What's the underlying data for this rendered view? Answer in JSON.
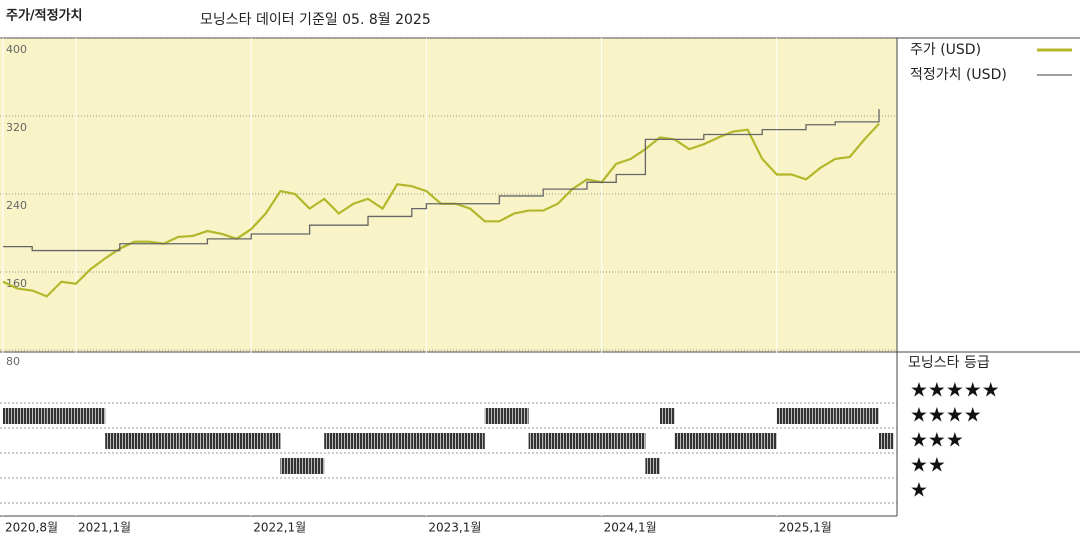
{
  "chart_data": {
    "type": "line",
    "title": "주가/적정가치",
    "subtitle": "모닝스타 데이터 기준일 05. 8월 2025",
    "x": [
      "2020-08",
      "2020-09",
      "2020-10",
      "2020-11",
      "2020-12",
      "2021-01",
      "2021-02",
      "2021-03",
      "2021-04",
      "2021-05",
      "2021-06",
      "2021-07",
      "2021-08",
      "2021-09",
      "2021-10",
      "2021-11",
      "2021-12",
      "2022-01",
      "2022-02",
      "2022-03",
      "2022-04",
      "2022-05",
      "2022-06",
      "2022-07",
      "2022-08",
      "2022-09",
      "2022-10",
      "2022-11",
      "2022-12",
      "2023-01",
      "2023-02",
      "2023-03",
      "2023-04",
      "2023-05",
      "2023-06",
      "2023-07",
      "2023-08",
      "2023-09",
      "2023-10",
      "2023-11",
      "2023-12",
      "2024-01",
      "2024-02",
      "2024-03",
      "2024-04",
      "2024-05",
      "2024-06",
      "2024-07",
      "2024-08",
      "2024-09",
      "2024-10",
      "2024-11",
      "2024-12",
      "2025-01",
      "2025-02",
      "2025-03",
      "2025-04",
      "2025-05",
      "2025-06",
      "2025-07",
      "2025-08"
    ],
    "series": [
      {
        "name": "주가 (USD)",
        "color": "#b3b72a",
        "step": false,
        "values": [
          150,
          143,
          141,
          135,
          150,
          148,
          163,
          174,
          184,
          191,
          191,
          189,
          196,
          197,
          202,
          199,
          194,
          204,
          220,
          243,
          240,
          225,
          235,
          220,
          230,
          235,
          225,
          250,
          248,
          243,
          230,
          230,
          225,
          212,
          212,
          220,
          223,
          223,
          230,
          245,
          255,
          252,
          271,
          276,
          286,
          298,
          296,
          286,
          291,
          298,
          304,
          306,
          276,
          260,
          260,
          255,
          267,
          276,
          278,
          296,
          312
        ]
      },
      {
        "name": "적정가치 (USD)",
        "color": "#666666",
        "step": true,
        "values": [
          186,
          186,
          182,
          182,
          182,
          182,
          182,
          182,
          189,
          189,
          189,
          189,
          189,
          189,
          194,
          194,
          194,
          199,
          199,
          199,
          199,
          208,
          208,
          208,
          208,
          217,
          217,
          217,
          225,
          230,
          230,
          230,
          230,
          230,
          238,
          238,
          238,
          245,
          245,
          245,
          252,
          252,
          260,
          260,
          296,
          296,
          296,
          296,
          301,
          301,
          301,
          301,
          306,
          306,
          306,
          311,
          311,
          314,
          314,
          314,
          327
        ]
      }
    ],
    "ratings": {
      "name": "모닝스타 등급",
      "values": [
        4,
        4,
        4,
        4,
        4,
        4,
        4,
        3,
        3,
        3,
        3,
        3,
        3,
        3,
        3,
        3,
        3,
        3,
        3,
        2,
        2,
        2,
        3,
        3,
        3,
        3,
        3,
        3,
        3,
        3,
        3,
        3,
        3,
        4,
        4,
        4,
        3,
        3,
        3,
        3,
        3,
        3,
        3,
        3,
        2,
        4,
        3,
        3,
        3,
        3,
        3,
        3,
        3,
        4,
        4,
        4,
        4,
        4,
        4,
        4,
        3
      ],
      "star_labels": [
        {
          "value": 5,
          "label": "★★★★★"
        },
        {
          "value": 4,
          "label": "★★★★"
        },
        {
          "value": 3,
          "label": "★★★"
        },
        {
          "value": 2,
          "label": "★★"
        },
        {
          "value": 1,
          "label": "★"
        }
      ]
    },
    "ylim": [
      80,
      400
    ],
    "yticks": [
      400,
      320,
      240,
      160,
      80
    ],
    "xticks": [
      {
        "value": "2020-08",
        "label": "2020,8월"
      },
      {
        "value": "2021-01",
        "label": "2021,1월"
      },
      {
        "value": "2022-01",
        "label": "2022,1월"
      },
      {
        "value": "2023-01",
        "label": "2023,1월"
      },
      {
        "value": "2024-01",
        "label": "2024,1월"
      },
      {
        "value": "2025-01",
        "label": "2025,1월"
      }
    ],
    "grid": true
  }
}
